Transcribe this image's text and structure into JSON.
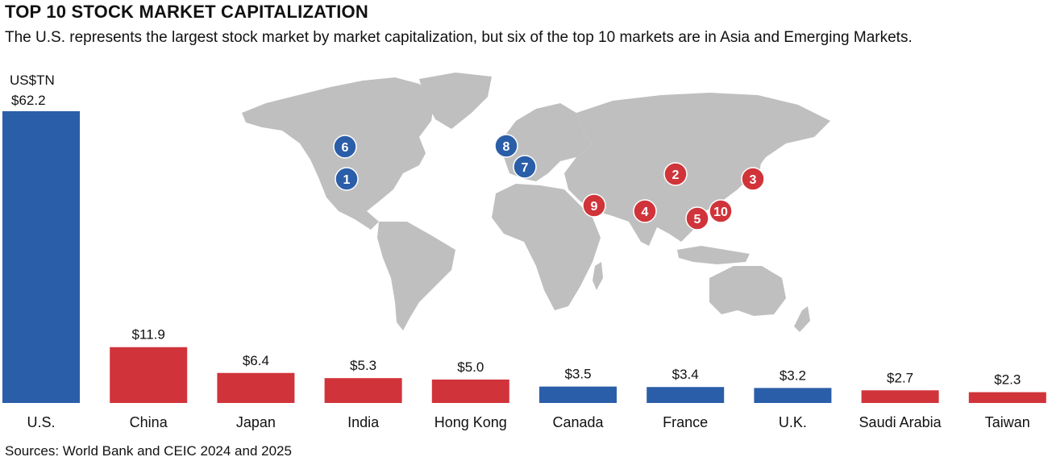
{
  "header": {
    "title": "TOP 10 STOCK MARKET CAPITALIZATION",
    "subtitle": "The U.S. represents the largest stock market by market capitalization, but six of the top 10 markets are in Asia and Emerging Markets.",
    "source": "Sources: World Bank and CEIC 2024 and 2025"
  },
  "colors": {
    "developed": "#2b5ea8",
    "asia_emerging": "#d0343a",
    "map_land": "#bfbfbf"
  },
  "chart_data": {
    "type": "bar",
    "title": "TOP 10 STOCK MARKET CAPITALIZATION",
    "unit_label": "US$TN",
    "categories": [
      "U.S.",
      "China",
      "Japan",
      "India",
      "Hong Kong",
      "Canada",
      "France",
      "U.K.",
      "Saudi Arabia",
      "Taiwan"
    ],
    "values": [
      62.2,
      11.9,
      6.4,
      5.3,
      5.0,
      3.5,
      3.4,
      3.2,
      2.7,
      2.3
    ],
    "value_labels": [
      "$62.2",
      "$11.9",
      "$6.4",
      "$5.3",
      "$5.0",
      "$3.5",
      "$3.4",
      "$3.2",
      "$2.7",
      "$2.3"
    ],
    "groups": [
      "developed",
      "asia_emerging",
      "asia_emerging",
      "asia_emerging",
      "asia_emerging",
      "developed",
      "developed",
      "developed",
      "asia_emerging",
      "asia_emerging"
    ],
    "ylim": [
      0,
      62.2
    ],
    "grid": false,
    "map_markers": [
      {
        "rank": "1",
        "market": "U.S.",
        "group": "developed"
      },
      {
        "rank": "2",
        "market": "China",
        "group": "asia_emerging"
      },
      {
        "rank": "3",
        "market": "Japan",
        "group": "asia_emerging"
      },
      {
        "rank": "4",
        "market": "India",
        "group": "asia_emerging"
      },
      {
        "rank": "5",
        "market": "Hong Kong",
        "group": "asia_emerging"
      },
      {
        "rank": "6",
        "market": "Canada",
        "group": "developed"
      },
      {
        "rank": "7",
        "market": "France",
        "group": "developed"
      },
      {
        "rank": "8",
        "market": "U.K.",
        "group": "developed"
      },
      {
        "rank": "9",
        "market": "Saudi Arabia",
        "group": "asia_emerging"
      },
      {
        "rank": "10",
        "market": "Taiwan",
        "group": "asia_emerging"
      }
    ]
  }
}
